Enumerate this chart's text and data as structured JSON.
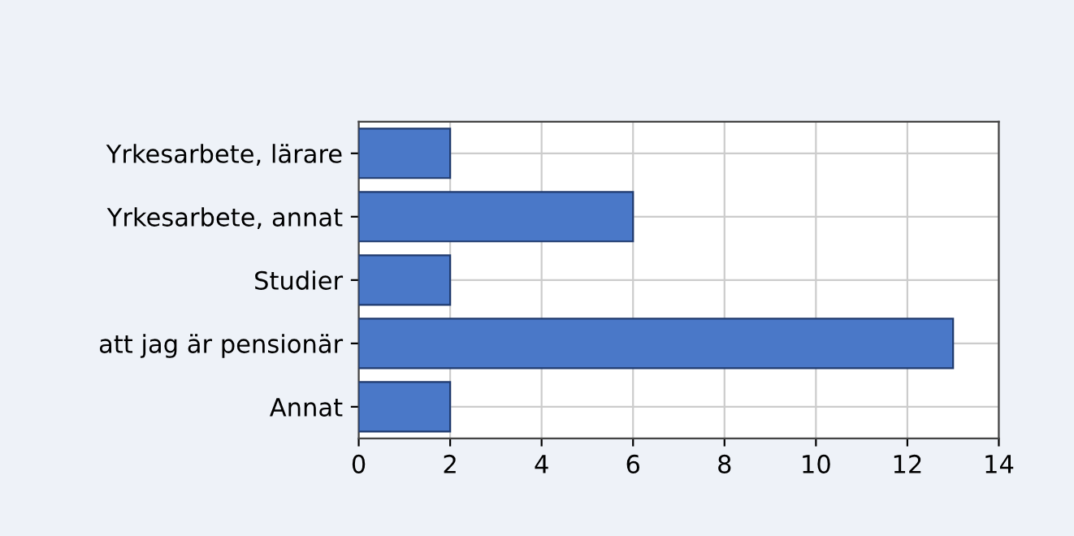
{
  "chart_data": {
    "type": "bar",
    "orientation": "horizontal",
    "categories": [
      "Yrkesarbete, lärare",
      "Yrkesarbete, annat",
      "Studier",
      "att jag är pensionär",
      "Annat"
    ],
    "values": [
      2,
      6,
      2,
      13,
      2
    ],
    "color": "#4a78c8",
    "xlim": [
      0,
      14
    ],
    "xticks": [
      0,
      2,
      4,
      6,
      8,
      10,
      12,
      14
    ],
    "grid": true
  }
}
